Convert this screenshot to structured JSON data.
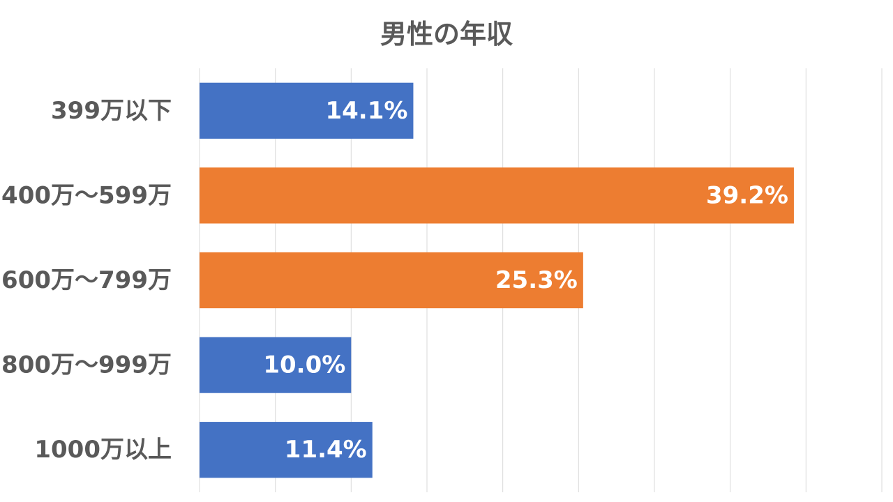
{
  "chart_data": {
    "type": "bar",
    "orientation": "horizontal",
    "title": "男性の年収",
    "categories": [
      "399万以下",
      "400万～599万",
      "600万～799万",
      "800万～999万",
      "1000万以上"
    ],
    "values": [
      14.1,
      39.2,
      25.3,
      10.0,
      11.4
    ],
    "data_labels": [
      "14.1%",
      "39.2%",
      "25.3%",
      "10.0%",
      "11.4%"
    ],
    "bar_colors": [
      "#4472c4",
      "#ed7d31",
      "#ed7d31",
      "#4472c4",
      "#4472c4"
    ],
    "xlim": [
      0,
      45
    ],
    "x_gridline_step": 5,
    "grid": true,
    "legend": "none",
    "xlabel": "",
    "ylabel": ""
  }
}
